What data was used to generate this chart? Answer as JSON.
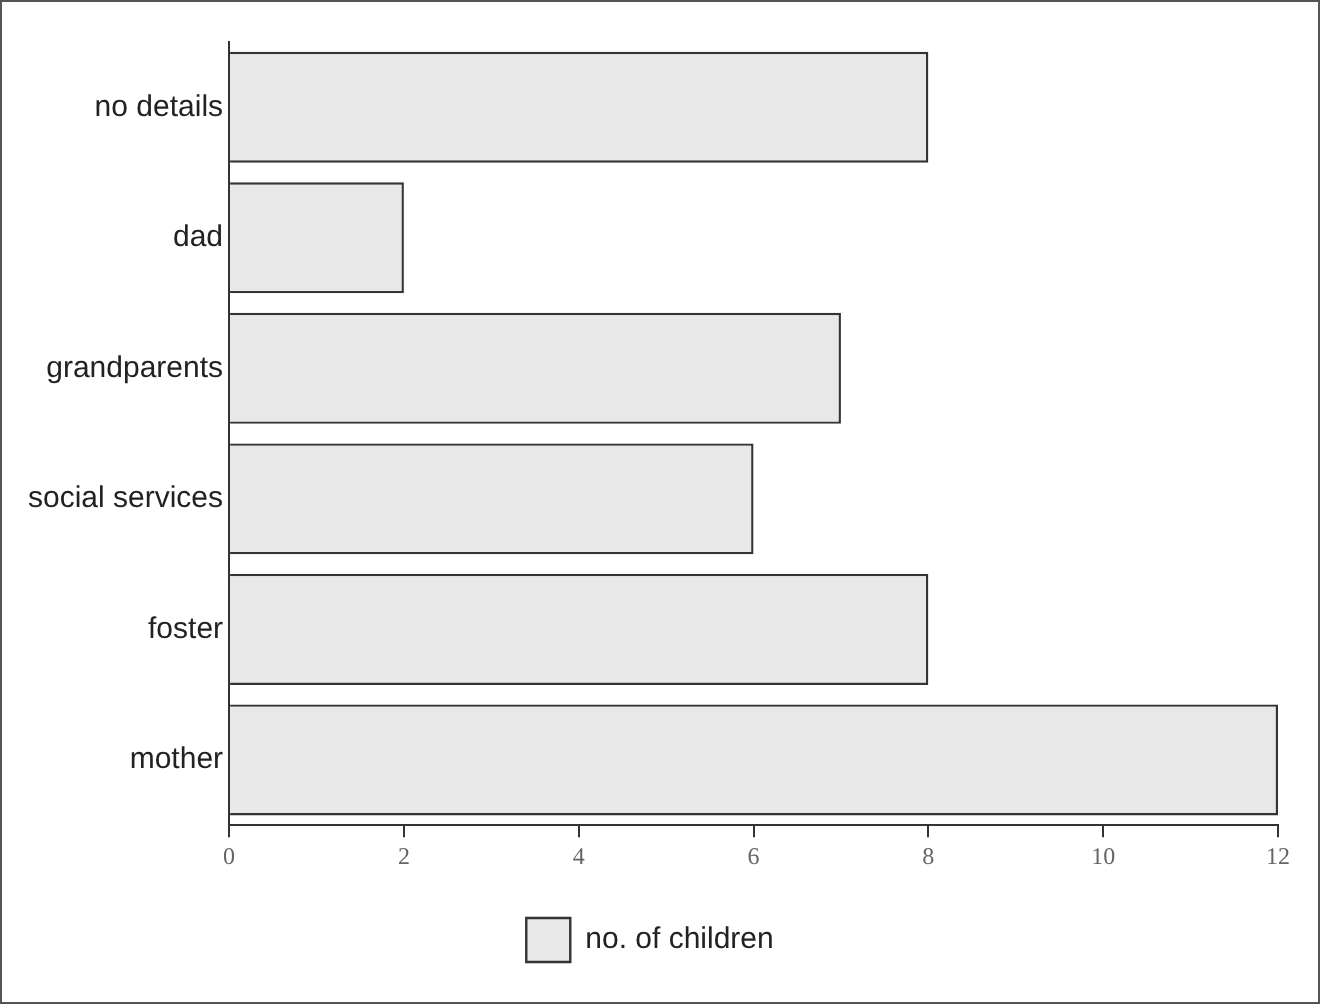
{
  "chart_data": {
    "type": "bar",
    "orientation": "horizontal",
    "categories": [
      "no details",
      "dad",
      "grandparents",
      "social services",
      "foster",
      "mother"
    ],
    "series": [
      {
        "name": "no. of children",
        "color": "#e8e8e8",
        "values": [
          8,
          2,
          7,
          6,
          8,
          12
        ]
      }
    ],
    "xlim": [
      0,
      12
    ],
    "xticks": [
      0,
      2,
      4,
      6,
      8,
      10,
      12
    ],
    "grid": false,
    "legend": "bottom"
  }
}
